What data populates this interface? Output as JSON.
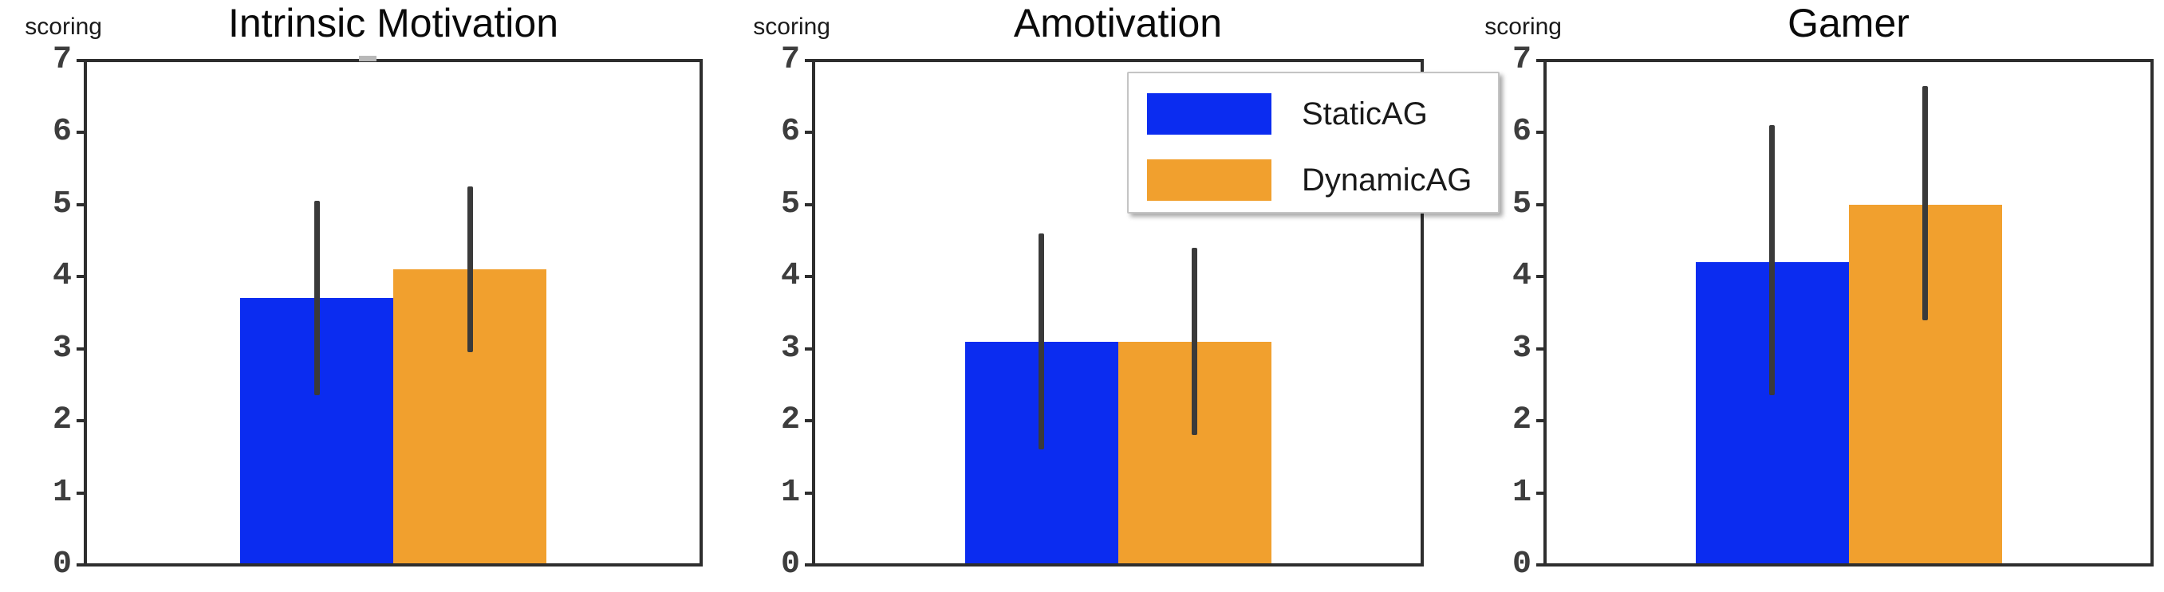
{
  "figure": {
    "y_axis_label": "scoring",
    "legend": {
      "items": [
        {
          "label": "StaticAG",
          "color": "#0b2cf0"
        },
        {
          "label": "DynamicAG",
          "color": "#f1a02e"
        }
      ],
      "position": "upper right of middle panel"
    },
    "colors": {
      "background": "#ffffff",
      "spine": "#2e2e2e",
      "tick_label": "#3d3d3d",
      "error_bar": "#3a3a3a",
      "title": "#0a0a0a",
      "text": "#1a1a1a",
      "legend_border": "#c4c4c4"
    }
  },
  "chart_data": [
    {
      "type": "bar",
      "title": "Intrinsic Motivation",
      "ylabel": "scoring",
      "ylim": [
        0,
        7
      ],
      "yticks": [
        0,
        1,
        2,
        3,
        4,
        5,
        6,
        7
      ],
      "grid": false,
      "series": [
        {
          "name": "StaticAG",
          "color": "#0b2cf0",
          "value": 3.7,
          "err_low": 2.35,
          "err_high": 5.05
        },
        {
          "name": "DynamicAG",
          "color": "#f1a02e",
          "value": 4.1,
          "err_low": 2.95,
          "err_high": 5.25
        }
      ]
    },
    {
      "type": "bar",
      "title": "Amotivation",
      "ylabel": "scoring",
      "ylim": [
        0,
        7
      ],
      "yticks": [
        0,
        1,
        2,
        3,
        4,
        5,
        6,
        7
      ],
      "grid": false,
      "series": [
        {
          "name": "StaticAG",
          "color": "#0b2cf0",
          "value": 3.1,
          "err_low": 1.6,
          "err_high": 4.6
        },
        {
          "name": "DynamicAG",
          "color": "#f1a02e",
          "value": 3.1,
          "err_low": 1.8,
          "err_high": 4.4
        }
      ]
    },
    {
      "type": "bar",
      "title": "Gamer",
      "ylabel": "scoring",
      "ylim": [
        0,
        7
      ],
      "yticks": [
        0,
        1,
        2,
        3,
        4,
        5,
        6,
        7
      ],
      "grid": false,
      "series": [
        {
          "name": "StaticAG",
          "color": "#0b2cf0",
          "value": 4.2,
          "err_low": 2.35,
          "err_high": 6.1
        },
        {
          "name": "DynamicAG",
          "color": "#f1a02e",
          "value": 5.0,
          "err_low": 3.4,
          "err_high": 6.65
        }
      ]
    }
  ]
}
